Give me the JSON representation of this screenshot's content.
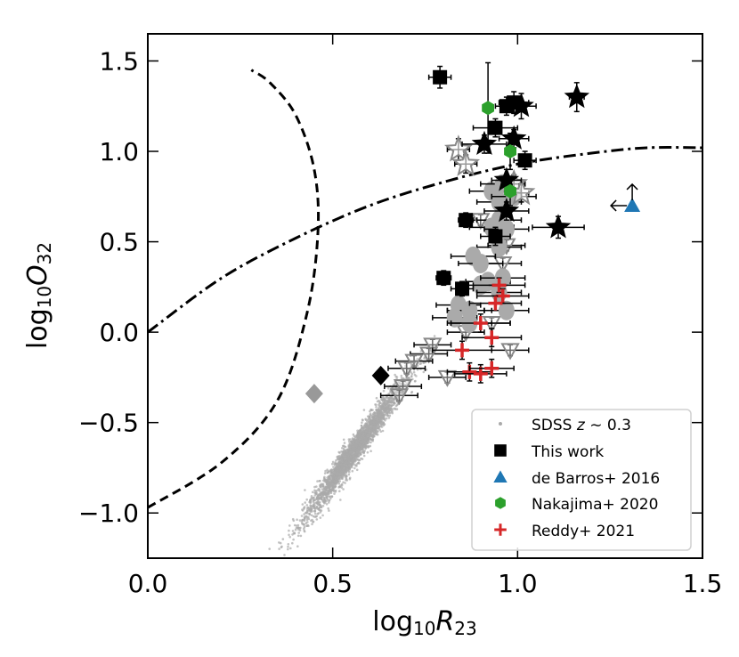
{
  "chart_data": {
    "type": "scatter",
    "xlabel": "log10R23",
    "ylabel": "log10O32",
    "xlabel_parts": {
      "base": "log",
      "sub": "10",
      "var": "R",
      "var_sub": "23"
    },
    "ylabel_parts": {
      "base": "log",
      "sub": "10",
      "var": "O",
      "var_sub": "32"
    },
    "xlim": [
      0.0,
      1.5
    ],
    "ylim": [
      -1.25,
      1.65
    ],
    "xticks": [
      0.0,
      0.5,
      1.0,
      1.5
    ],
    "yticks": [
      -1.0,
      -0.5,
      0.0,
      0.5,
      1.0,
      1.5
    ],
    "xtick_labels": [
      "0.0",
      "0.5",
      "1.0",
      "1.5"
    ],
    "ytick_labels": [
      "−1.0",
      "−0.5",
      "0.0",
      "0.5",
      "1.0",
      "1.5"
    ],
    "legend_position": "bottom-right",
    "legend": [
      {
        "label": "SDSS z ∼ 0.3",
        "label_parts": [
          "SDSS ",
          "z",
          " ∼ 0.3"
        ],
        "marker": "dot",
        "color": "#aaaaaa"
      },
      {
        "label": "This work",
        "marker": "square",
        "color": "#000000"
      },
      {
        "label": "de Barros+ 2016",
        "marker": "triangle",
        "color": "#1f77b4"
      },
      {
        "label": "Nakajima+ 2020",
        "marker": "hexagon",
        "color": "#2ca02c"
      },
      {
        "label": "Reddy+ 2021",
        "marker": "plus",
        "color": "#d62728"
      }
    ],
    "curves": [
      {
        "name": "dashed-boundary",
        "style": "dashed",
        "points": [
          [
            0.0,
            -0.97
          ],
          [
            0.2,
            -0.72
          ],
          [
            0.35,
            -0.38
          ],
          [
            0.43,
            0.1
          ],
          [
            0.46,
            0.55
          ],
          [
            0.45,
            0.9
          ],
          [
            0.4,
            1.2
          ],
          [
            0.33,
            1.38
          ],
          [
            0.28,
            1.45
          ]
        ]
      },
      {
        "name": "dashdot-boundary",
        "style": "dashdot",
        "points": [
          [
            0.0,
            0.0
          ],
          [
            0.2,
            0.3
          ],
          [
            0.4,
            0.52
          ],
          [
            0.6,
            0.7
          ],
          [
            0.8,
            0.83
          ],
          [
            1.0,
            0.93
          ],
          [
            1.2,
            0.99
          ],
          [
            1.35,
            1.02
          ],
          [
            1.5,
            1.02
          ]
        ]
      }
    ],
    "sdss_color": "#aaaaaa",
    "sdss_center": {
      "x": 0.56,
      "y": -0.65
    },
    "sdss_count": 2600,
    "series": [
      {
        "name": "This work squares",
        "marker": "square",
        "color": "#000000",
        "points": [
          {
            "x": 0.79,
            "y": 1.41,
            "xerr": 0.03,
            "yerr": 0.06
          },
          {
            "x": 0.94,
            "y": 1.13,
            "xerr": 0.06,
            "yerr": 0.05
          },
          {
            "x": 0.97,
            "y": 1.25,
            "xerr": 0.03,
            "yerr": 0.05
          },
          {
            "x": 0.99,
            "y": 1.27,
            "xerr": 0.04,
            "yerr": 0.06
          },
          {
            "x": 1.02,
            "y": 0.95,
            "xerr": 0.03,
            "yerr": 0.05
          },
          {
            "x": 0.86,
            "y": 0.62,
            "xerr": 0.02,
            "yerr": 0.04
          },
          {
            "x": 0.94,
            "y": 0.53,
            "xerr": 0.04,
            "yerr": 0.05
          },
          {
            "x": 0.8,
            "y": 0.3,
            "xerr": 0.02,
            "yerr": 0.04
          },
          {
            "x": 0.85,
            "y": 0.24,
            "xerr": 0.03,
            "yerr": 0.04
          }
        ]
      },
      {
        "name": "This work stars",
        "marker": "star",
        "color": "#000000",
        "points": [
          {
            "x": 1.16,
            "y": 1.3,
            "xerr": 0.02,
            "yerr": 0.08
          },
          {
            "x": 1.01,
            "y": 1.25,
            "xerr": 0.04,
            "yerr": 0.07
          },
          {
            "x": 0.91,
            "y": 1.04,
            "xerr": 0.06,
            "yerr": 0.05
          },
          {
            "x": 0.99,
            "y": 1.07,
            "xerr": 0.04,
            "yerr": 0.05
          },
          {
            "x": 0.97,
            "y": 0.84,
            "xerr": 0.04,
            "yerr": 0.06
          },
          {
            "x": 0.97,
            "y": 0.67,
            "xerr": 0.06,
            "yerr": 0.05
          },
          {
            "x": 1.11,
            "y": 0.58,
            "xerr": 0.07,
            "yerr": 0.06
          }
        ]
      },
      {
        "name": "This work diamonds",
        "marker": "diamond",
        "color": "#000000",
        "points": [
          {
            "x": 0.63,
            "y": -0.24
          }
        ]
      },
      {
        "name": "This work gray circles",
        "marker": "circle",
        "color": "#aaaaaa",
        "points": [
          {
            "x": 0.93,
            "y": 0.78
          },
          {
            "x": 0.96,
            "y": 0.82
          },
          {
            "x": 0.95,
            "y": 0.72
          },
          {
            "x": 0.99,
            "y": 0.75
          },
          {
            "x": 0.95,
            "y": 0.62
          },
          {
            "x": 0.93,
            "y": 0.58
          },
          {
            "x": 0.97,
            "y": 0.57
          },
          {
            "x": 0.95,
            "y": 0.47
          },
          {
            "x": 0.88,
            "y": 0.42
          },
          {
            "x": 0.9,
            "y": 0.38
          },
          {
            "x": 0.92,
            "y": 0.28
          },
          {
            "x": 0.9,
            "y": 0.26
          },
          {
            "x": 0.95,
            "y": 0.22
          },
          {
            "x": 0.84,
            "y": 0.15
          },
          {
            "x": 0.87,
            "y": 0.12
          },
          {
            "x": 0.83,
            "y": 0.08
          },
          {
            "x": 0.87,
            "y": 0.05
          },
          {
            "x": 0.97,
            "y": 0.12
          },
          {
            "x": 0.96,
            "y": 0.3
          }
        ],
        "xerr": 0.06,
        "yerr": 0.04
      },
      {
        "name": "This work gray open stars",
        "marker": "open-star",
        "color": "#888888",
        "points": [
          {
            "x": 0.84,
            "y": 1.01,
            "xerr": 0.03,
            "yerr": 0.06
          },
          {
            "x": 0.86,
            "y": 0.93,
            "xerr": 0.03,
            "yerr": 0.05
          },
          {
            "x": 0.99,
            "y": 0.82,
            "xerr": 0.03,
            "yerr": 0.05
          },
          {
            "x": 1.01,
            "y": 0.77,
            "xerr": 0.02,
            "yerr": 0.05
          }
        ]
      },
      {
        "name": "This work gray triangles",
        "marker": "down-triangle",
        "color": "#888888",
        "points": [
          {
            "x": 0.9,
            "y": 0.62
          },
          {
            "x": 0.97,
            "y": 0.48
          },
          {
            "x": 0.96,
            "y": 0.38
          },
          {
            "x": 0.86,
            "y": 0.12
          },
          {
            "x": 0.93,
            "y": 0.05
          },
          {
            "x": 0.86,
            "y": 0.0
          },
          {
            "x": 0.77,
            "y": -0.07
          },
          {
            "x": 0.76,
            "y": -0.12
          },
          {
            "x": 0.98,
            "y": -0.1
          },
          {
            "x": 0.72,
            "y": -0.16
          },
          {
            "x": 0.7,
            "y": -0.2
          },
          {
            "x": 0.81,
            "y": -0.25
          },
          {
            "x": 0.69,
            "y": -0.3
          },
          {
            "x": 0.68,
            "y": -0.35
          }
        ],
        "xerr": 0.05,
        "yerr": 0.03
      },
      {
        "name": "This work gray diamond",
        "marker": "diamond",
        "color": "#999999",
        "points": [
          {
            "x": 0.45,
            "y": -0.34
          }
        ]
      },
      {
        "name": "de Barros+ 2016",
        "marker": "triangle",
        "color": "#1f77b4",
        "points": [
          {
            "x": 1.31,
            "y": 0.7
          }
        ],
        "limits": [
          "left",
          "up"
        ]
      },
      {
        "name": "Nakajima+ 2020",
        "marker": "hexagon",
        "color": "#2ca02c",
        "points": [
          {
            "x": 0.92,
            "y": 1.24,
            "yerr": 0.25
          },
          {
            "x": 0.98,
            "y": 1.0,
            "yerr": 0.1
          },
          {
            "x": 0.98,
            "y": 0.78,
            "yerr": 0.08
          }
        ]
      },
      {
        "name": "Reddy+ 2021",
        "marker": "plus",
        "color": "#d62728",
        "points": [
          {
            "x": 0.95,
            "y": 0.26,
            "xerr": 0.07,
            "yerr": 0.04
          },
          {
            "x": 0.96,
            "y": 0.2,
            "xerr": 0.07,
            "yerr": 0.04
          },
          {
            "x": 0.94,
            "y": 0.16,
            "xerr": 0.07,
            "yerr": 0.04
          },
          {
            "x": 0.9,
            "y": 0.05,
            "xerr": 0.08,
            "yerr": 0.05
          },
          {
            "x": 0.93,
            "y": -0.03,
            "xerr": 0.08,
            "yerr": 0.05
          },
          {
            "x": 0.85,
            "y": -0.1,
            "xerr": 0.08,
            "yerr": 0.05
          },
          {
            "x": 0.87,
            "y": -0.22,
            "xerr": 0.06,
            "yerr": 0.05
          },
          {
            "x": 0.9,
            "y": -0.23,
            "xerr": 0.07,
            "yerr": 0.05
          },
          {
            "x": 0.93,
            "y": -0.2,
            "xerr": 0.06,
            "yerr": 0.05
          }
        ]
      }
    ]
  }
}
